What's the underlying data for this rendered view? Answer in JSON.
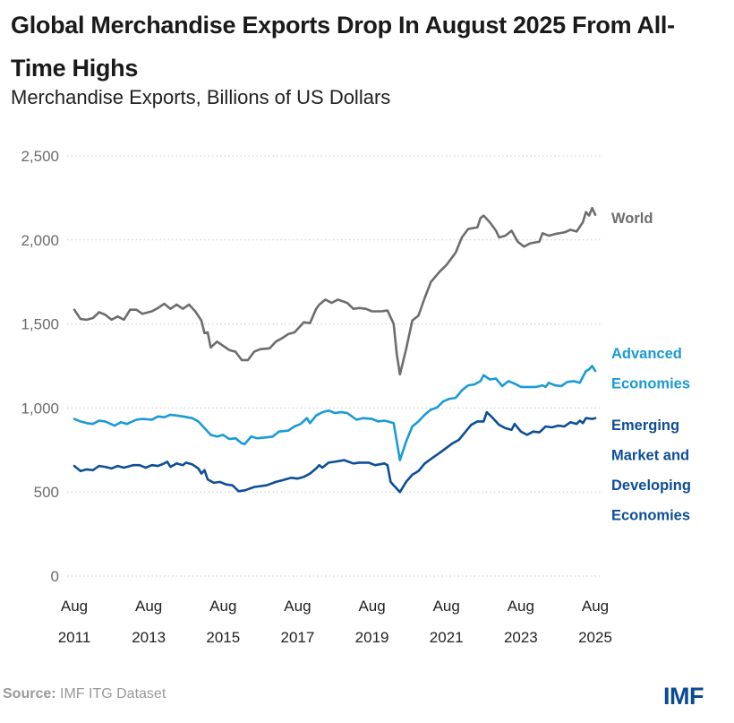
{
  "header": {
    "title": "Global Merchandise Exports Drop In August 2025 From All-Time Highs",
    "subtitle": "Merchandise Exports, Billions of US Dollars"
  },
  "footer": {
    "source_label": "Source:",
    "source_text": " IMF ITG Dataset",
    "logo": "IMF"
  },
  "chart_data": {
    "type": "line",
    "title": "Global Merchandise Exports Drop In August 2025 From All-Time Highs",
    "subtitle": "Merchandise Exports, Billions of US Dollars",
    "xlabel": "",
    "ylabel": "",
    "ylim": [
      0,
      2500
    ],
    "yticks": [
      0,
      500,
      1000,
      1500,
      2000,
      2500
    ],
    "ytick_labels": [
      "0",
      "500",
      "1,000",
      "1,500",
      "2,000",
      "2,500"
    ],
    "xlim": [
      "2011-08",
      "2025-08"
    ],
    "xticks": [
      {
        "date": "2011-08",
        "line1": "Aug",
        "line2": "2011"
      },
      {
        "date": "2013-08",
        "line1": "Aug",
        "line2": "2013"
      },
      {
        "date": "2015-08",
        "line1": "Aug",
        "line2": "2015"
      },
      {
        "date": "2017-08",
        "line1": "Aug",
        "line2": "2017"
      },
      {
        "date": "2019-08",
        "line1": "Aug",
        "line2": "2019"
      },
      {
        "date": "2021-08",
        "line1": "Aug",
        "line2": "2021"
      },
      {
        "date": "2023-08",
        "line1": "Aug",
        "line2": "2023"
      },
      {
        "date": "2025-08",
        "line1": "Aug",
        "line2": "2025"
      }
    ],
    "grid": "horizontal-dotted",
    "legend": "direct-labels-right",
    "series": [
      {
        "name": "World",
        "label_lines": [
          "World"
        ],
        "color": "#6d6d6d",
        "points": [
          [
            "2011-08",
            1585
          ],
          [
            "2011-10",
            1530
          ],
          [
            "2011-12",
            1525
          ],
          [
            "2012-02",
            1535
          ],
          [
            "2012-04",
            1570
          ],
          [
            "2012-06",
            1555
          ],
          [
            "2012-08",
            1525
          ],
          [
            "2012-10",
            1545
          ],
          [
            "2012-12",
            1525
          ],
          [
            "2013-02",
            1585
          ],
          [
            "2013-04",
            1585
          ],
          [
            "2013-06",
            1560
          ],
          [
            "2013-09",
            1575
          ],
          [
            "2013-11",
            1595
          ],
          [
            "2014-01",
            1620
          ],
          [
            "2014-03",
            1590
          ],
          [
            "2014-05",
            1615
          ],
          [
            "2014-07",
            1590
          ],
          [
            "2014-09",
            1615
          ],
          [
            "2014-11",
            1575
          ],
          [
            "2015-01",
            1520
          ],
          [
            "2015-02",
            1445
          ],
          [
            "2015-03",
            1450
          ],
          [
            "2015-04",
            1360
          ],
          [
            "2015-06",
            1395
          ],
          [
            "2015-08",
            1370
          ],
          [
            "2015-10",
            1345
          ],
          [
            "2015-12",
            1335
          ],
          [
            "2016-02",
            1285
          ],
          [
            "2016-04",
            1285
          ],
          [
            "2016-06",
            1335
          ],
          [
            "2016-08",
            1350
          ],
          [
            "2016-11",
            1355
          ],
          [
            "2017-01",
            1395
          ],
          [
            "2017-03",
            1415
          ],
          [
            "2017-05",
            1440
          ],
          [
            "2017-07",
            1450
          ],
          [
            "2017-10",
            1510
          ],
          [
            "2017-12",
            1505
          ],
          [
            "2018-02",
            1590
          ],
          [
            "2018-03",
            1615
          ],
          [
            "2018-05",
            1645
          ],
          [
            "2018-07",
            1625
          ],
          [
            "2018-09",
            1645
          ],
          [
            "2018-12",
            1625
          ],
          [
            "2019-02",
            1590
          ],
          [
            "2019-04",
            1595
          ],
          [
            "2019-06",
            1590
          ],
          [
            "2019-08",
            1575
          ],
          [
            "2019-11",
            1575
          ],
          [
            "2020-01",
            1580
          ],
          [
            "2020-03",
            1500
          ],
          [
            "2020-04",
            1320
          ],
          [
            "2020-05",
            1200
          ],
          [
            "2020-07",
            1350
          ],
          [
            "2020-09",
            1520
          ],
          [
            "2020-11",
            1550
          ],
          [
            "2021-01",
            1655
          ],
          [
            "2021-03",
            1750
          ],
          [
            "2021-06",
            1815
          ],
          [
            "2021-08",
            1850
          ],
          [
            "2021-11",
            1925
          ],
          [
            "2022-01",
            2015
          ],
          [
            "2022-03",
            2065
          ],
          [
            "2022-06",
            2075
          ],
          [
            "2022-07",
            2130
          ],
          [
            "2022-08",
            2145
          ],
          [
            "2022-10",
            2105
          ],
          [
            "2022-12",
            2055
          ],
          [
            "2023-01",
            2015
          ],
          [
            "2023-03",
            2025
          ],
          [
            "2023-05",
            2055
          ],
          [
            "2023-07",
            1990
          ],
          [
            "2023-09",
            1960
          ],
          [
            "2023-11",
            1980
          ],
          [
            "2024-02",
            1990
          ],
          [
            "2024-03",
            2040
          ],
          [
            "2024-05",
            2025
          ],
          [
            "2024-07",
            2035
          ],
          [
            "2024-10",
            2045
          ],
          [
            "2024-12",
            2060
          ],
          [
            "2025-02",
            2050
          ],
          [
            "2025-04",
            2105
          ],
          [
            "2025-05",
            2165
          ],
          [
            "2025-06",
            2145
          ],
          [
            "2025-07",
            2190
          ],
          [
            "2025-08",
            2150
          ]
        ]
      },
      {
        "name": "Advanced Economies",
        "label_lines": [
          "Advanced",
          "Economies"
        ],
        "color": "#1a9ad6",
        "points": [
          [
            "2011-08",
            935
          ],
          [
            "2011-10",
            920
          ],
          [
            "2011-12",
            910
          ],
          [
            "2012-02",
            905
          ],
          [
            "2012-04",
            925
          ],
          [
            "2012-06",
            920
          ],
          [
            "2012-09",
            895
          ],
          [
            "2012-11",
            915
          ],
          [
            "2013-01",
            905
          ],
          [
            "2013-04",
            930
          ],
          [
            "2013-06",
            935
          ],
          [
            "2013-09",
            930
          ],
          [
            "2013-11",
            950
          ],
          [
            "2014-01",
            945
          ],
          [
            "2014-03",
            960
          ],
          [
            "2014-05",
            955
          ],
          [
            "2014-07",
            950
          ],
          [
            "2014-10",
            940
          ],
          [
            "2014-12",
            920
          ],
          [
            "2015-02",
            880
          ],
          [
            "2015-04",
            840
          ],
          [
            "2015-06",
            830
          ],
          [
            "2015-08",
            840
          ],
          [
            "2015-10",
            815
          ],
          [
            "2015-12",
            820
          ],
          [
            "2016-02",
            790
          ],
          [
            "2016-03",
            785
          ],
          [
            "2016-05",
            830
          ],
          [
            "2016-07",
            820
          ],
          [
            "2016-10",
            825
          ],
          [
            "2016-12",
            830
          ],
          [
            "2017-02",
            860
          ],
          [
            "2017-05",
            865
          ],
          [
            "2017-07",
            890
          ],
          [
            "2017-09",
            905
          ],
          [
            "2017-11",
            940
          ],
          [
            "2017-12",
            910
          ],
          [
            "2018-02",
            955
          ],
          [
            "2018-04",
            975
          ],
          [
            "2018-06",
            985
          ],
          [
            "2018-08",
            970
          ],
          [
            "2018-10",
            975
          ],
          [
            "2018-12",
            970
          ],
          [
            "2019-03",
            930
          ],
          [
            "2019-05",
            940
          ],
          [
            "2019-08",
            935
          ],
          [
            "2019-10",
            920
          ],
          [
            "2019-12",
            925
          ],
          [
            "2020-01",
            920
          ],
          [
            "2020-03",
            910
          ],
          [
            "2020-04",
            800
          ],
          [
            "2020-05",
            690
          ],
          [
            "2020-07",
            800
          ],
          [
            "2020-09",
            890
          ],
          [
            "2020-11",
            920
          ],
          [
            "2021-01",
            960
          ],
          [
            "2021-03",
            990
          ],
          [
            "2021-05",
            1003
          ],
          [
            "2021-07",
            1040
          ],
          [
            "2021-09",
            1055
          ],
          [
            "2021-11",
            1060
          ],
          [
            "2022-01",
            1105
          ],
          [
            "2022-03",
            1135
          ],
          [
            "2022-05",
            1140
          ],
          [
            "2022-07",
            1160
          ],
          [
            "2022-08",
            1195
          ],
          [
            "2022-10",
            1170
          ],
          [
            "2022-12",
            1175
          ],
          [
            "2023-02",
            1130
          ],
          [
            "2023-04",
            1160
          ],
          [
            "2023-06",
            1145
          ],
          [
            "2023-08",
            1125
          ],
          [
            "2023-11",
            1125
          ],
          [
            "2024-01",
            1125
          ],
          [
            "2024-03",
            1135
          ],
          [
            "2024-04",
            1125
          ],
          [
            "2024-05",
            1150
          ],
          [
            "2024-07",
            1135
          ],
          [
            "2024-09",
            1130
          ],
          [
            "2024-11",
            1155
          ],
          [
            "2025-01",
            1160
          ],
          [
            "2025-03",
            1150
          ],
          [
            "2025-05",
            1220
          ],
          [
            "2025-06",
            1230
          ],
          [
            "2025-07",
            1250
          ],
          [
            "2025-08",
            1220
          ]
        ]
      },
      {
        "name": "Emerging Market and Developing Economies",
        "label_lines": [
          "Emerging",
          "Market and",
          "Developing",
          "Economies"
        ],
        "color": "#0d4e97",
        "points": [
          [
            "2011-08",
            655
          ],
          [
            "2011-10",
            625
          ],
          [
            "2011-12",
            635
          ],
          [
            "2012-02",
            630
          ],
          [
            "2012-04",
            655
          ],
          [
            "2012-06",
            650
          ],
          [
            "2012-08",
            640
          ],
          [
            "2012-10",
            655
          ],
          [
            "2012-12",
            645
          ],
          [
            "2013-03",
            660
          ],
          [
            "2013-05",
            660
          ],
          [
            "2013-07",
            645
          ],
          [
            "2013-09",
            660
          ],
          [
            "2013-11",
            655
          ],
          [
            "2014-01",
            670
          ],
          [
            "2014-02",
            680
          ],
          [
            "2014-03",
            650
          ],
          [
            "2014-05",
            670
          ],
          [
            "2014-07",
            660
          ],
          [
            "2014-08",
            675
          ],
          [
            "2014-10",
            665
          ],
          [
            "2014-12",
            640
          ],
          [
            "2015-01",
            610
          ],
          [
            "2015-02",
            630
          ],
          [
            "2015-03",
            575
          ],
          [
            "2015-05",
            555
          ],
          [
            "2015-07",
            560
          ],
          [
            "2015-09",
            545
          ],
          [
            "2015-11",
            540
          ],
          [
            "2016-01",
            505
          ],
          [
            "2016-03",
            510
          ],
          [
            "2016-06",
            530
          ],
          [
            "2016-08",
            535
          ],
          [
            "2016-10",
            540
          ],
          [
            "2017-01",
            560
          ],
          [
            "2017-03",
            570
          ],
          [
            "2017-06",
            585
          ],
          [
            "2017-08",
            580
          ],
          [
            "2017-10",
            590
          ],
          [
            "2017-12",
            610
          ],
          [
            "2018-02",
            640
          ],
          [
            "2018-03",
            660
          ],
          [
            "2018-04",
            645
          ],
          [
            "2018-06",
            675
          ],
          [
            "2018-08",
            680
          ],
          [
            "2018-11",
            690
          ],
          [
            "2019-02",
            670
          ],
          [
            "2019-04",
            675
          ],
          [
            "2019-07",
            675
          ],
          [
            "2019-09",
            660
          ],
          [
            "2019-12",
            670
          ],
          [
            "2020-01",
            660
          ],
          [
            "2020-02",
            560
          ],
          [
            "2020-03",
            540
          ],
          [
            "2020-05",
            500
          ],
          [
            "2020-07",
            560
          ],
          [
            "2020-09",
            603
          ],
          [
            "2020-11",
            625
          ],
          [
            "2021-01",
            670
          ],
          [
            "2021-04",
            710
          ],
          [
            "2021-06",
            735
          ],
          [
            "2021-08",
            763
          ],
          [
            "2021-10",
            790
          ],
          [
            "2021-12",
            810
          ],
          [
            "2022-02",
            855
          ],
          [
            "2022-04",
            900
          ],
          [
            "2022-06",
            920
          ],
          [
            "2022-08",
            920
          ],
          [
            "2022-09",
            975
          ],
          [
            "2022-11",
            940
          ],
          [
            "2023-01",
            900
          ],
          [
            "2023-03",
            880
          ],
          [
            "2023-05",
            870
          ],
          [
            "2023-06",
            905
          ],
          [
            "2023-08",
            860
          ],
          [
            "2023-10",
            840
          ],
          [
            "2023-12",
            860
          ],
          [
            "2024-02",
            855
          ],
          [
            "2024-04",
            890
          ],
          [
            "2024-06",
            885
          ],
          [
            "2024-08",
            895
          ],
          [
            "2024-10",
            890
          ],
          [
            "2024-12",
            915
          ],
          [
            "2025-02",
            905
          ],
          [
            "2025-03",
            925
          ],
          [
            "2025-04",
            910
          ],
          [
            "2025-05",
            940
          ],
          [
            "2025-07",
            935
          ],
          [
            "2025-08",
            940
          ]
        ]
      }
    ]
  }
}
